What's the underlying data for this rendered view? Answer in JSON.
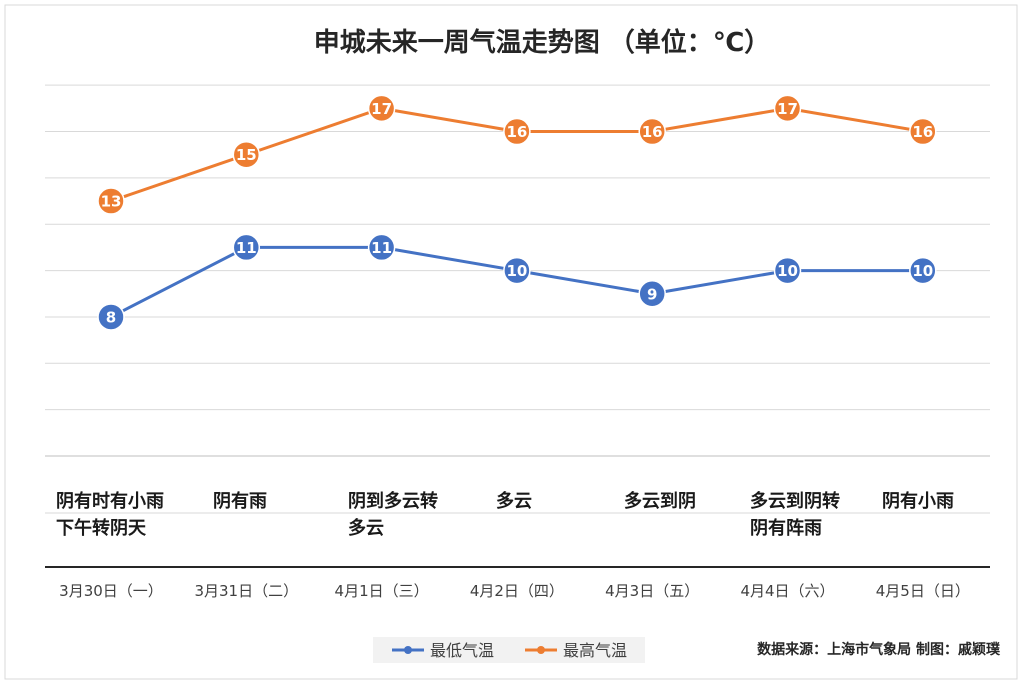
{
  "chart_data": {
    "type": "line",
    "title": "申城未来一周气温走势图 （单位：℃）",
    "categories": [
      "3月30日（一）",
      "3月31日（二）",
      "4月1日（三）",
      "4月2日（四）",
      "4月3日（五）",
      "4月4日（六）",
      "4月5日（日）"
    ],
    "weather": [
      [
        "阴有时有小雨",
        "下午转阴天"
      ],
      [
        "阴有雨"
      ],
      [
        "阴到多云转",
        "多云"
      ],
      [
        "多云"
      ],
      [
        "多云到阴"
      ],
      [
        "多云到阴转",
        "阴有阵雨"
      ],
      [
        "阴有小雨"
      ]
    ],
    "series": [
      {
        "name": "最低气温",
        "color": "#4472c4",
        "values": [
          8,
          11,
          11,
          10,
          9,
          10,
          10
        ]
      },
      {
        "name": "最高气温",
        "color": "#ed7d31",
        "values": [
          13,
          15,
          17,
          16,
          16,
          17,
          16
        ]
      }
    ],
    "ylim": [
      2,
      19
    ],
    "grid": true,
    "legend": "bottom"
  },
  "source": "数据来源：上海市气象局  制图：戚颖璞"
}
